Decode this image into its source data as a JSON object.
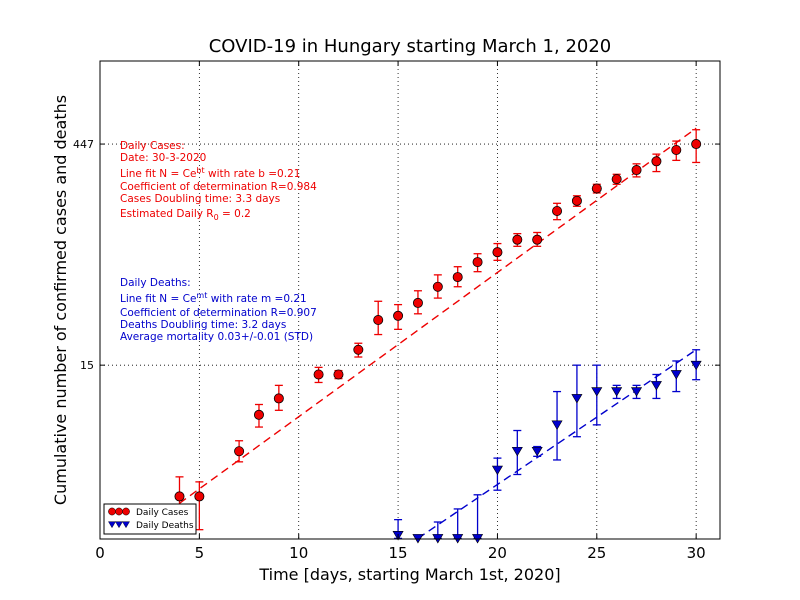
{
  "colors": {
    "cases": "#ee0000",
    "deaths": "#0000cc"
  },
  "chart_data": {
    "type": "scatter",
    "title": "COVID-19 in Hungary starting March 1, 2020",
    "xlabel": "Time [days, starting March 1st, 2020]",
    "ylabel": "Cumulative number of confirmed cases and deaths",
    "xlim": [
      0,
      31.2
    ],
    "ylim": [
      1.04,
      1600
    ],
    "yscale": "log",
    "xticks": [
      0,
      5,
      10,
      15,
      20,
      25,
      30
    ],
    "xticklabels": [
      "0",
      "5",
      "10",
      "15",
      "20",
      "25",
      "30"
    ],
    "yticks": [
      15,
      447
    ],
    "yticklabels": [
      "15",
      "447"
    ],
    "grid": true,
    "legend": {
      "position": "lower-left",
      "entries": [
        "Daily Cases",
        "Daily Deaths"
      ]
    },
    "series": [
      {
        "name": "Daily Cases",
        "marker": "circle",
        "x": [
          4,
          5,
          7,
          8,
          9,
          11,
          12,
          13,
          14,
          15,
          16,
          17,
          18,
          19,
          20,
          21,
          22,
          23,
          24,
          25,
          26,
          27,
          28,
          29,
          30
        ],
        "y": [
          2,
          2,
          4,
          7,
          9,
          13,
          13,
          19,
          30,
          32,
          39,
          50,
          58,
          73,
          85,
          103,
          103,
          160,
          187,
          226,
          261,
          300,
          343,
          408,
          447
        ],
        "err_lo": [
          0.6,
          0.8,
          0.6,
          1.2,
          1.5,
          1.5,
          0.8,
          2,
          6,
          6,
          6,
          8,
          8,
          10,
          10,
          10,
          10,
          20,
          15,
          15,
          20,
          30,
          50,
          60,
          110
        ],
        "err_hi": [
          0.7,
          0.5,
          0.7,
          1.2,
          2,
          1.5,
          0.8,
          2,
          10,
          6,
          8,
          10,
          10,
          10,
          12,
          10,
          12,
          20,
          15,
          15,
          20,
          30,
          40,
          60,
          110
        ]
      },
      {
        "name": "Daily Deaths",
        "marker": "triangle-down",
        "x": [
          15,
          16,
          17,
          18,
          19,
          20,
          21,
          22,
          23,
          24,
          25,
          26,
          27,
          28,
          29,
          30
        ],
        "y": [
          1.1,
          1.05,
          1.05,
          1.05,
          1.05,
          3,
          4,
          4,
          6,
          9,
          10,
          10,
          10,
          11,
          13,
          15
        ],
        "err_lo": [
          0.05,
          0,
          0,
          0,
          0,
          0.8,
          1.2,
          0.3,
          2.5,
          4,
          4,
          1,
          1,
          2,
          3,
          3
        ],
        "err_hi": [
          0.3,
          0,
          0.3,
          0.6,
          1,
          0.6,
          1.5,
          0.3,
          4,
          6,
          5,
          1,
          1,
          2,
          3,
          4
        ]
      }
    ],
    "fits": [
      {
        "series": "Daily Cases",
        "x": [
          4,
          30
        ],
        "y": [
          1.8,
          570
        ]
      },
      {
        "series": "Daily Deaths",
        "x": [
          16,
          30
        ],
        "y": [
          1.05,
          19
        ]
      }
    ],
    "annotations": {
      "cases": [
        "Daily Cases:",
        "Date: 30-3-2020",
        "Line fit N = Ce^{bt} with rate b =0.21",
        "Coefficient of determination R=0.984",
        "Cases Doubling time: 3.3 days",
        "Estimated Daily R_0 = 0.2"
      ],
      "deaths": [
        "Daily Deaths:",
        "Line fit N = Ce^{mt} with rate m =0.21",
        "Coefficient of determination R=0.907",
        "Deaths Doubling time: 3.2 days",
        "Average mortality 0.03+/-0.01 (STD)"
      ]
    }
  }
}
